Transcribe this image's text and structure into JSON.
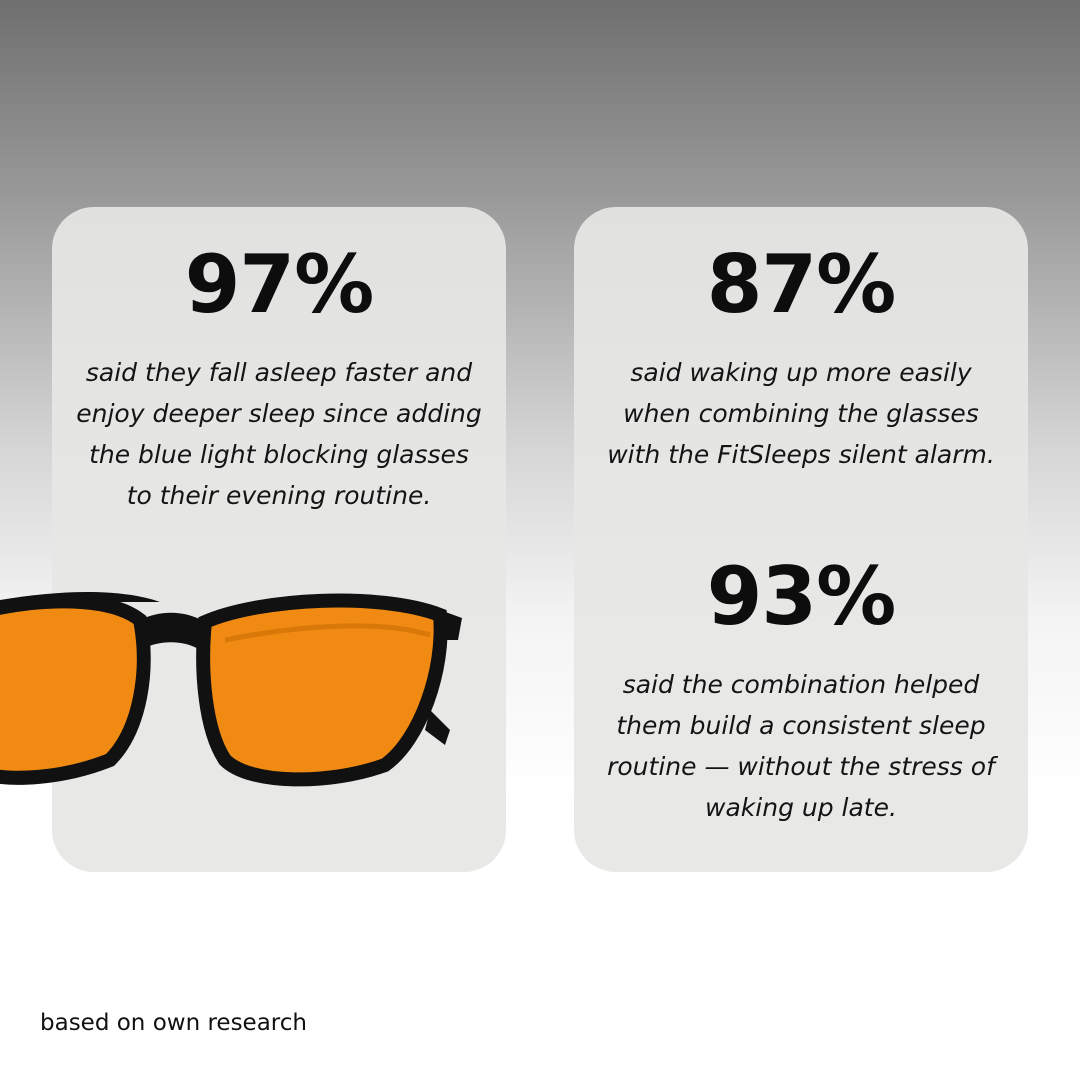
{
  "stats": [
    {
      "value": "97%",
      "text": "said they fall asleep faster and enjoy deeper sleep since adding the blue light blocking glasses to their evening routine."
    },
    {
      "value": "87%",
      "text": "said waking up more easily when combining the glasses with the FitSleeps silent alarm."
    },
    {
      "value": "93%",
      "text": "said the combination helped them build a consistent sleep routine — without the stress of waking up late."
    }
  ],
  "footnote": "based on own research"
}
